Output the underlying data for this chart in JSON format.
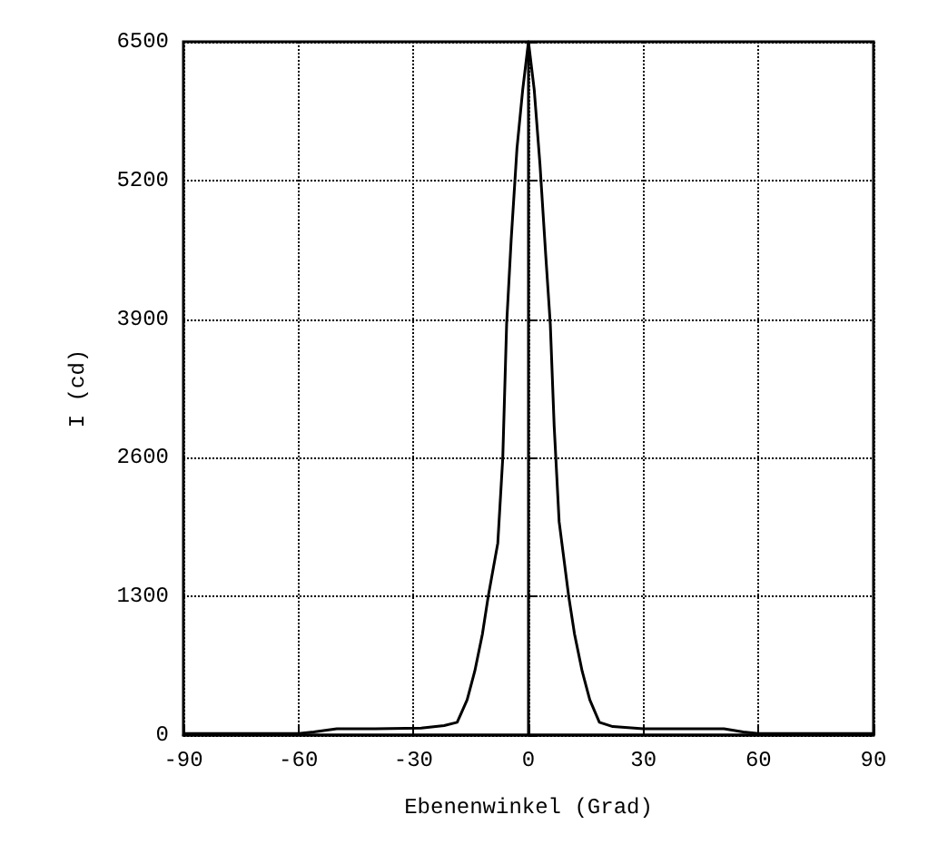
{
  "chart_data": {
    "type": "line",
    "xlabel": "Ebenenwinkel (Grad)",
    "ylabel": "I (cd)",
    "x": [
      -90,
      -70,
      -60,
      -56,
      -50,
      -40,
      -28,
      -22,
      -18.6,
      -16,
      -14,
      -12,
      -10.5,
      -8,
      -6.7,
      -5.7,
      -4.5,
      -3,
      -1.5,
      0,
      1.5,
      3,
      4.5,
      5.7,
      6.7,
      8,
      10.5,
      12,
      14,
      16,
      18.5,
      22,
      30,
      40,
      51,
      56,
      60,
      70,
      90
    ],
    "series": [
      {
        "color": "#000000",
        "values": [
          15,
          15,
          15,
          30,
          60,
          60,
          65,
          90,
          120,
          330,
          600,
          950,
          1300,
          1800,
          2600,
          3850,
          4650,
          5500,
          6050,
          6500,
          6050,
          5350,
          4500,
          3850,
          2900,
          2000,
          1300,
          950,
          600,
          330,
          120,
          80,
          60,
          60,
          60,
          30,
          15,
          15,
          15
        ]
      }
    ],
    "xlim": [
      -90,
      90
    ],
    "xticks": [
      -90,
      -60,
      -30,
      0,
      30,
      60,
      90
    ],
    "ylim": [
      0,
      6500
    ],
    "yticks": [
      0,
      1300,
      2600,
      3900,
      5200,
      6500
    ],
    "grid": true,
    "marker": "none",
    "line_style": "solid"
  }
}
